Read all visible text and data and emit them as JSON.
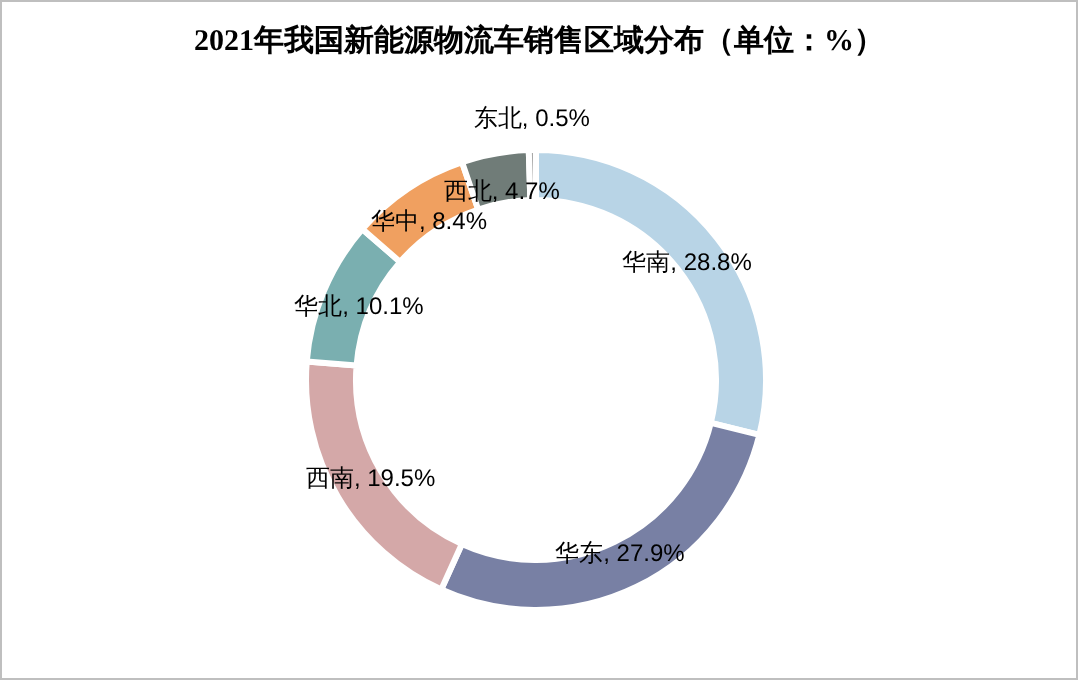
{
  "chart_data": {
    "type": "donut",
    "title": "2021年我国新能源物流车销售区域分布（单位：%）",
    "categories": [
      "华南",
      "华东",
      "西南",
      "华北",
      "华中",
      "西北",
      "东北"
    ],
    "values": [
      28.8,
      27.9,
      19.5,
      10.1,
      8.4,
      4.7,
      0.5
    ],
    "value_labels": [
      ", 28.8%",
      ", 27.9%",
      ", 19.5%",
      ", 10.1%",
      ", 8.4%",
      ", 4.7%",
      ", 0.5%"
    ],
    "colors": [
      "#b8d4e6",
      "#7880a4",
      "#d4a8a8",
      "#7aafb0",
      "#f0a060",
      "#707c78",
      "#a8a8a8"
    ]
  }
}
